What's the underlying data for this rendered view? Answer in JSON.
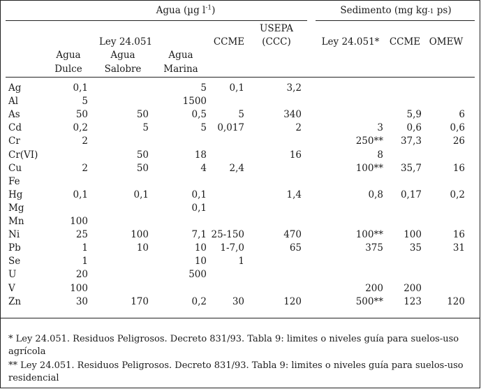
{
  "header": {
    "agua_group": "Agua (µg l",
    "agua_sup": "-1",
    "agua_close": ")",
    "sedimento_group": "Sedimento (mg kg",
    "sedimento_sub": "-1",
    "sedimento_close": " ps)"
  },
  "columns": {
    "agua_dulce": [
      "Agua",
      "Dulce"
    ],
    "agua_salobre": [
      "Ley 24.051",
      "Agua",
      "Salobre"
    ],
    "agua_marina": [
      "Agua",
      "Marina"
    ],
    "ccme_agua": "CCME",
    "usepa": [
      "USEPA",
      "(CCC)"
    ],
    "ley_sed": "Ley 24.051*",
    "ccme_sed": "CCME",
    "omew": "OMEW"
  },
  "rows": [
    {
      "el": "Ag",
      "dulce": "0,1",
      "salobre": "",
      "marina": "5",
      "ccme": "0,1",
      "usepa": "3,2",
      "ley_sed": "",
      "ccme_sed": "",
      "omew": ""
    },
    {
      "el": "Al",
      "dulce": "5",
      "salobre": "",
      "marina": "1500",
      "ccme": "",
      "usepa": "",
      "ley_sed": "",
      "ccme_sed": "",
      "omew": ""
    },
    {
      "el": "As",
      "dulce": "50",
      "salobre": "50",
      "marina": "0,5",
      "ccme": "5",
      "usepa": "340",
      "ley_sed": "",
      "ccme_sed": "5,9",
      "omew": "6"
    },
    {
      "el": "Cd",
      "dulce": "0,2",
      "salobre": "5",
      "marina": "5",
      "ccme": "0,017",
      "usepa": "2",
      "ley_sed": "3",
      "ccme_sed": "0,6",
      "omew": "0,6"
    },
    {
      "el": "Cr",
      "dulce": "2",
      "salobre": "",
      "marina": "",
      "ccme": "",
      "usepa": "",
      "ley_sed": "250**",
      "ccme_sed": "37,3",
      "omew": "26"
    },
    {
      "el": "Cr(VI)",
      "dulce": "",
      "salobre": "50",
      "marina": "18",
      "ccme": "",
      "usepa": "16",
      "ley_sed": "8",
      "ccme_sed": "",
      "omew": ""
    },
    {
      "el": "Cu",
      "dulce": "2",
      "salobre": "50",
      "marina": "4",
      "ccme": "2,4",
      "usepa": "",
      "ley_sed": "100**",
      "ccme_sed": "35,7",
      "omew": "16"
    },
    {
      "el": "Fe",
      "dulce": "",
      "salobre": "",
      "marina": "",
      "ccme": "",
      "usepa": "",
      "ley_sed": "",
      "ccme_sed": "",
      "omew": ""
    },
    {
      "el": "Hg",
      "dulce": "0,1",
      "salobre": "0,1",
      "marina": "0,1",
      "ccme": "",
      "usepa": "1,4",
      "ley_sed": "0,8",
      "ccme_sed": "0,17",
      "omew": "0,2"
    },
    {
      "el": "Mg",
      "dulce": "",
      "salobre": "",
      "marina": "0,1",
      "ccme": "",
      "usepa": "",
      "ley_sed": "",
      "ccme_sed": "",
      "omew": ""
    },
    {
      "el": "Mn",
      "dulce": "100",
      "salobre": "",
      "marina": "",
      "ccme": "",
      "usepa": "",
      "ley_sed": "",
      "ccme_sed": "",
      "omew": ""
    },
    {
      "el": "Ni",
      "dulce": "25",
      "salobre": "100",
      "marina": "7,1",
      "ccme": "25-150",
      "usepa": "470",
      "ley_sed": "100**",
      "ccme_sed": "100",
      "omew": "16"
    },
    {
      "el": "Pb",
      "dulce": "1",
      "salobre": "10",
      "marina": "10",
      "ccme": "1-7,0",
      "usepa": "65",
      "ley_sed": "375",
      "ccme_sed": "35",
      "omew": "31"
    },
    {
      "el": "Se",
      "dulce": "1",
      "salobre": "",
      "marina": "10",
      "ccme": "1",
      "usepa": "",
      "ley_sed": "",
      "ccme_sed": "",
      "omew": ""
    },
    {
      "el": "U",
      "dulce": "20",
      "salobre": "",
      "marina": "500",
      "ccme": "",
      "usepa": "",
      "ley_sed": "",
      "ccme_sed": "",
      "omew": ""
    },
    {
      "el": "V",
      "dulce": "100",
      "salobre": "",
      "marina": "",
      "ccme": "",
      "usepa": "",
      "ley_sed": "200",
      "ccme_sed": "200",
      "omew": ""
    },
    {
      "el": "Zn",
      "dulce": "30",
      "salobre": "170",
      "marina": "0,2",
      "ccme": "30",
      "usepa": "120",
      "ley_sed": "500**",
      "ccme_sed": "123",
      "omew": "120"
    }
  ],
  "footnotes": [
    "* Ley 24.051. Residuos Peligrosos. Decreto 831/93. Tabla 9: limites o niveles guía para suelos-uso",
    "agrícola",
    "** Ley 24.051. Residuos Peligrosos. Decreto 831/93. Tabla 9: limites o niveles guía para suelos-uso",
    "residencial"
  ]
}
